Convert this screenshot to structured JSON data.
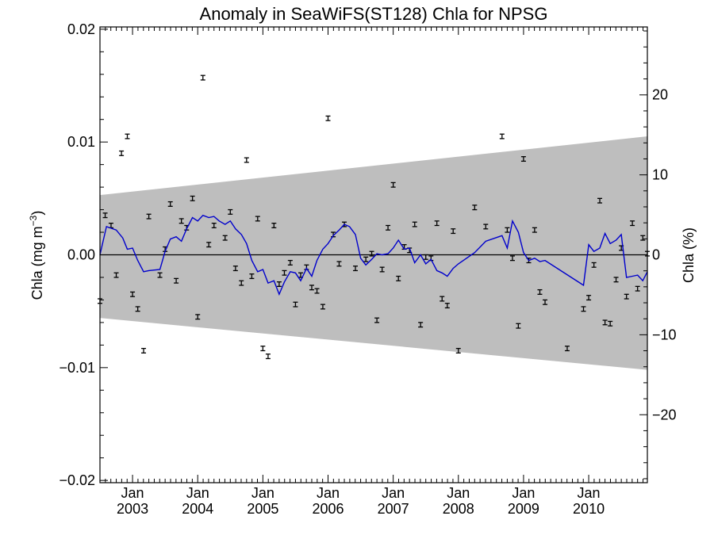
{
  "chart_data": {
    "type": "scatter",
    "title": "Anomaly in SeaWiFS(ST128) Chla for NPSG",
    "ylabel_left": "Chla (mg m",
    "ylabel_left_superscript": "−3",
    "ylabel_left_close": ")",
    "ylabel_right": "Chla (%)",
    "xlim": [
      2002.5,
      2010.9
    ],
    "ylim_left": [
      -0.0202,
      0.0202
    ],
    "ylim_right": [
      -28.5,
      28.5
    ],
    "y_ticks_left": [
      {
        "value": 0.02,
        "label": "0.02"
      },
      {
        "value": 0.01,
        "label": "0.01"
      },
      {
        "value": 0.0,
        "label": "0.00"
      },
      {
        "value": -0.01,
        "label": "−0.01"
      },
      {
        "value": -0.02,
        "label": "−0.02"
      }
    ],
    "y_ticks_right": [
      {
        "value": 20,
        "label": "20"
      },
      {
        "value": 10,
        "label": "10"
      },
      {
        "value": 0,
        "label": "0"
      },
      {
        "value": -10,
        "label": "−10"
      },
      {
        "value": -20,
        "label": "−20"
      }
    ],
    "x_ticks": [
      {
        "value": 2003.0,
        "month": "Jan",
        "year": "2003"
      },
      {
        "value": 2004.0,
        "month": "Jan",
        "year": "2004"
      },
      {
        "value": 2005.0,
        "month": "Jan",
        "year": "2005"
      },
      {
        "value": 2006.0,
        "month": "Jan",
        "year": "2006"
      },
      {
        "value": 2007.0,
        "month": "Jan",
        "year": "2007"
      },
      {
        "value": 2008.0,
        "month": "Jan",
        "year": "2008"
      },
      {
        "value": 2009.0,
        "month": "Jan",
        "year": "2009"
      },
      {
        "value": 2010.0,
        "month": "Jan",
        "year": "2010"
      }
    ],
    "envelope": {
      "x": [
        2002.5,
        2010.9
      ],
      "upper": [
        0.0053,
        0.0105
      ],
      "lower": [
        -0.0056,
        -0.0102
      ],
      "color": "#bebebe"
    },
    "zero_line": 0.0,
    "points": {
      "x": [
        2002.5,
        2002.58,
        2002.67,
        2002.75,
        2002.83,
        2002.92,
        2003.0,
        2003.08,
        2003.17,
        2003.25,
        2003.42,
        2003.5,
        2003.58,
        2003.67,
        2003.75,
        2003.83,
        2003.92,
        2004.0,
        2004.08,
        2004.17,
        2004.25,
        2004.42,
        2004.5,
        2004.58,
        2004.67,
        2004.75,
        2004.83,
        2004.92,
        2005.0,
        2005.08,
        2005.17,
        2005.25,
        2005.33,
        2005.42,
        2005.5,
        2005.58,
        2005.67,
        2005.75,
        2005.83,
        2005.92,
        2006.0,
        2006.08,
        2006.17,
        2006.25,
        2006.42,
        2006.58,
        2006.67,
        2006.75,
        2006.83,
        2006.92,
        2007.0,
        2007.08,
        2007.17,
        2007.25,
        2007.33,
        2007.42,
        2007.5,
        2007.58,
        2007.67,
        2007.75,
        2007.83,
        2007.92,
        2008.0,
        2008.25,
        2008.42,
        2008.67,
        2008.75,
        2008.83,
        2008.92,
        2009.0,
        2009.08,
        2009.17,
        2009.25,
        2009.33,
        2009.67,
        2009.92,
        2010.0,
        2010.08,
        2010.17,
        2010.25,
        2010.33,
        2010.42,
        2010.5,
        2010.58,
        2010.67,
        2010.75,
        2010.83,
        2010.9
      ],
      "y": [
        -0.0041,
        0.0035,
        0.0026,
        -0.0018,
        0.009,
        0.0105,
        -0.0035,
        -0.0048,
        -0.0085,
        0.0034,
        -0.0018,
        0.0005,
        0.0045,
        -0.0023,
        0.003,
        0.0024,
        0.005,
        -0.0055,
        0.0157,
        0.0009,
        0.0026,
        0.0015,
        0.0038,
        -0.0012,
        -0.0025,
        0.0084,
        -0.0019,
        0.0032,
        -0.0083,
        -0.009,
        0.0026,
        -0.0026,
        -0.0016,
        -0.0007,
        -0.0044,
        -0.0018,
        -0.0011,
        -0.0029,
        -0.0032,
        -0.0046,
        0.0121,
        0.0018,
        -0.0008,
        0.0027,
        -0.0012,
        -0.0004,
        0.0001,
        -0.0058,
        -0.0013,
        0.0024,
        0.0062,
        -0.0021,
        0.0007,
        0.0004,
        0.0027,
        -0.0062,
        -0.0002,
        -0.0003,
        0.0028,
        -0.0039,
        -0.0045,
        0.0021,
        -0.0085,
        0.0042,
        0.0025,
        0.0105,
        0.0022,
        -0.0003,
        -0.0063,
        0.0085,
        -0.0005,
        0.0022,
        -0.0033,
        -0.0042,
        -0.0083,
        -0.0048,
        -0.0038,
        -0.0009,
        0.0048,
        -0.006,
        -0.0061,
        -0.0022,
        0.0006,
        -0.0037,
        0.0028,
        -0.003,
        0.0015,
        0.0001
      ],
      "error": 0.0002,
      "color": "#000000"
    },
    "smoothed_series": {
      "x": [
        2002.5,
        2002.6,
        2002.75,
        2002.85,
        2002.92,
        2003.0,
        2003.08,
        2003.17,
        2003.25,
        2003.42,
        2003.5,
        2003.58,
        2003.67,
        2003.75,
        2003.83,
        2003.92,
        2004.0,
        2004.08,
        2004.17,
        2004.25,
        2004.33,
        2004.42,
        2004.5,
        2004.58,
        2004.67,
        2004.75,
        2004.83,
        2004.92,
        2005.0,
        2005.08,
        2005.17,
        2005.25,
        2005.33,
        2005.42,
        2005.5,
        2005.58,
        2005.67,
        2005.75,
        2005.83,
        2005.92,
        2006.0,
        2006.08,
        2006.17,
        2006.25,
        2006.33,
        2006.42,
        2006.5,
        2006.58,
        2006.67,
        2006.75,
        2006.83,
        2006.92,
        2007.0,
        2007.08,
        2007.17,
        2007.25,
        2007.33,
        2007.42,
        2007.5,
        2007.58,
        2007.67,
        2007.75,
        2007.83,
        2007.92,
        2008.0,
        2008.25,
        2008.42,
        2008.67,
        2008.75,
        2008.83,
        2008.92,
        2009.0,
        2009.08,
        2009.17,
        2009.25,
        2009.33,
        2009.92,
        2010.0,
        2010.08,
        2010.17,
        2010.25,
        2010.33,
        2010.42,
        2010.5,
        2010.58,
        2010.67,
        2010.75,
        2010.83,
        2010.9
      ],
      "y": [
        0.0,
        0.0025,
        0.0022,
        0.0015,
        0.0005,
        0.0006,
        -0.0005,
        -0.0015,
        -0.0014,
        -0.0013,
        0.0003,
        0.0014,
        0.0016,
        0.0012,
        0.0023,
        0.0033,
        0.003,
        0.0035,
        0.0033,
        0.0034,
        0.003,
        0.0027,
        0.003,
        0.0023,
        0.0018,
        0.001,
        -0.0005,
        -0.0015,
        -0.0013,
        -0.0025,
        -0.0023,
        -0.0035,
        -0.0024,
        -0.0015,
        -0.0016,
        -0.0023,
        -0.0012,
        -0.0019,
        -0.0005,
        0.0005,
        0.001,
        0.0017,
        0.0022,
        0.0027,
        0.0025,
        0.0018,
        -0.0003,
        -0.0009,
        -0.0004,
        0.0001,
        0.0,
        0.0001,
        0.0006,
        0.0013,
        0.0005,
        0.0006,
        -0.0007,
        0.0,
        -0.0008,
        -0.0004,
        -0.0014,
        -0.0016,
        -0.0019,
        -0.0012,
        -0.0008,
        0.0002,
        0.0012,
        0.0017,
        0.0006,
        0.003,
        0.002,
        0.0002,
        -0.0005,
        -0.0003,
        -0.0006,
        -0.0005,
        -0.0027,
        0.0009,
        0.0003,
        0.0006,
        0.0019,
        0.001,
        0.0013,
        0.0018,
        -0.002,
        -0.0019,
        -0.0018,
        -0.0023,
        -0.0015
      ],
      "color": "#0000cc"
    },
    "grid": false
  }
}
